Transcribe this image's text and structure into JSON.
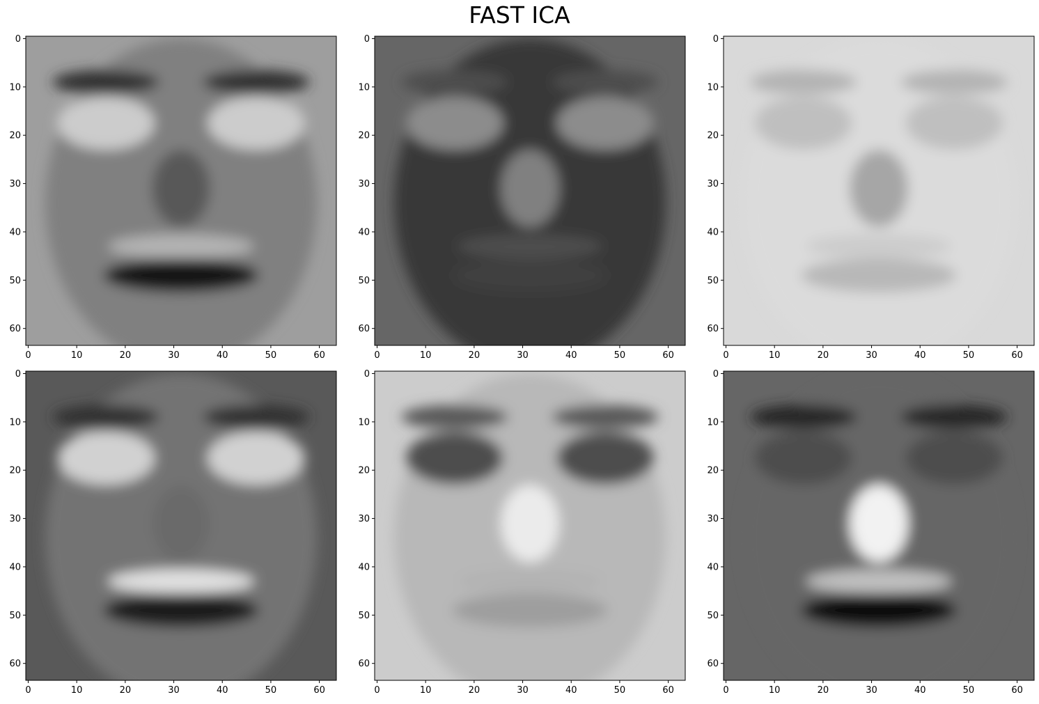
{
  "title": "FAST ICA",
  "chart_data": {
    "type": "heatmap",
    "title": "FAST ICA",
    "colormap": "gray",
    "layout": "2 rows x 3 columns of 64x64 grayscale component images",
    "xlabel": "",
    "ylabel": "",
    "xlim": [
      -0.5,
      63.5
    ],
    "ylim": [
      63.5,
      -0.5
    ],
    "xticks": [
      0,
      10,
      20,
      30,
      40,
      50,
      60
    ],
    "yticks": [
      0,
      10,
      20,
      30,
      40,
      50,
      60
    ],
    "panels": [
      {
        "index": 1,
        "overall_tone": "medium gray",
        "features": {
          "background": 0.62,
          "skin": 0.5,
          "eyes": 0.8,
          "brows": 0.2,
          "nose": 0.35,
          "mouth": 0.08,
          "upper_lip": 0.7
        }
      },
      {
        "index": 2,
        "overall_tone": "dark",
        "features": {
          "background": 0.4,
          "skin": 0.22,
          "eyes": 0.55,
          "brows": 0.3,
          "nose": 0.5,
          "mouth": 0.25,
          "upper_lip": 0.3
        }
      },
      {
        "index": 3,
        "overall_tone": "light",
        "features": {
          "background": 0.85,
          "skin": 0.86,
          "eyes": 0.75,
          "brows": 0.7,
          "nose": 0.65,
          "mouth": 0.72,
          "upper_lip": 0.8
        }
      },
      {
        "index": 4,
        "overall_tone": "medium gray",
        "features": {
          "background": 0.35,
          "skin": 0.45,
          "eyes": 0.82,
          "brows": 0.2,
          "nose": 0.42,
          "mouth": 0.12,
          "upper_lip": 0.88
        }
      },
      {
        "index": 5,
        "overall_tone": "light",
        "features": {
          "background": 0.8,
          "skin": 0.72,
          "eyes": 0.3,
          "brows": 0.35,
          "nose": 0.92,
          "mouth": 0.62,
          "upper_lip": 0.7
        }
      },
      {
        "index": 6,
        "overall_tone": "medium gray",
        "features": {
          "background": 0.4,
          "skin": 0.4,
          "eyes": 0.3,
          "brows": 0.15,
          "nose": 0.95,
          "mouth": 0.05,
          "upper_lip": 0.75
        }
      }
    ]
  }
}
